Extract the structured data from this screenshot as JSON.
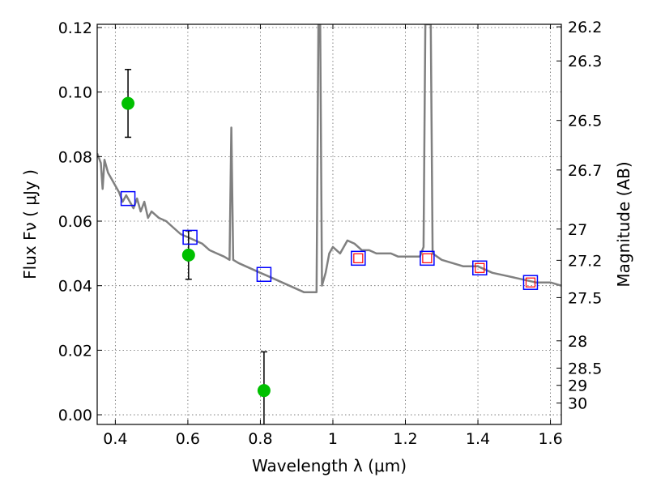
{
  "chart_data": {
    "type": "scatter",
    "xlabel": "Wavelength  λ (μm)",
    "ylabel": "Flux  Fν  ( μJy )",
    "y2label": "Magnitude (AB)",
    "xlim": [
      0.35,
      1.63
    ],
    "ylim": [
      -0.003,
      0.121
    ],
    "xticks": [
      0.4,
      0.6,
      0.8,
      1.0,
      1.2,
      1.4,
      1.6
    ],
    "xtick_labels": [
      "0.4",
      "0.6",
      "0.8",
      "1",
      "1.2",
      "1.4",
      "1.6"
    ],
    "yticks": [
      0.0,
      0.02,
      0.04,
      0.06,
      0.08,
      0.1,
      0.12
    ],
    "ytick_labels": [
      "0.00",
      "0.02",
      "0.04",
      "0.06",
      "0.08",
      "0.10",
      "0.12"
    ],
    "y2ticks": [
      "26.2",
      "26.3",
      "26.5",
      "26.7",
      "27",
      "27.2",
      "27.5",
      "28",
      "28.5",
      "29",
      "30"
    ],
    "grid": true,
    "colors": {
      "model": "#808080",
      "observed": "#00c000",
      "model_band": "#0000ff",
      "model_band_inner": "#ff0000",
      "errorbar": "#000000"
    },
    "series": [
      {
        "type": "line",
        "points": [
          [
            0.35,
            0.081
          ],
          [
            0.36,
            0.078
          ],
          [
            0.365,
            0.07
          ],
          [
            0.37,
            0.079
          ],
          [
            0.38,
            0.075
          ],
          [
            0.39,
            0.073
          ],
          [
            0.4,
            0.071
          ],
          [
            0.41,
            0.069
          ],
          [
            0.42,
            0.066
          ],
          [
            0.43,
            0.068
          ],
          [
            0.44,
            0.066
          ],
          [
            0.45,
            0.064
          ],
          [
            0.46,
            0.067
          ],
          [
            0.47,
            0.063
          ],
          [
            0.48,
            0.066
          ],
          [
            0.49,
            0.061
          ],
          [
            0.5,
            0.063
          ],
          [
            0.52,
            0.061
          ],
          [
            0.54,
            0.06
          ],
          [
            0.56,
            0.058
          ],
          [
            0.58,
            0.056
          ],
          [
            0.6,
            0.055
          ],
          [
            0.62,
            0.054
          ],
          [
            0.64,
            0.053
          ],
          [
            0.66,
            0.051
          ],
          [
            0.68,
            0.05
          ],
          [
            0.7,
            0.049
          ],
          [
            0.715,
            0.048
          ],
          [
            0.72,
            0.089
          ],
          [
            0.725,
            0.048
          ],
          [
            0.74,
            0.047
          ],
          [
            0.76,
            0.046
          ],
          [
            0.78,
            0.045
          ],
          [
            0.8,
            0.044
          ],
          [
            0.82,
            0.043
          ],
          [
            0.84,
            0.042
          ],
          [
            0.86,
            0.041
          ],
          [
            0.88,
            0.04
          ],
          [
            0.9,
            0.039
          ],
          [
            0.92,
            0.038
          ],
          [
            0.94,
            0.038
          ],
          [
            0.955,
            0.038
          ],
          [
            0.96,
            0.121
          ],
          [
            0.965,
            0.121
          ],
          [
            0.97,
            0.04
          ],
          [
            0.98,
            0.044
          ],
          [
            0.99,
            0.05
          ],
          [
            1.0,
            0.052
          ],
          [
            1.02,
            0.05
          ],
          [
            1.04,
            0.054
          ],
          [
            1.06,
            0.053
          ],
          [
            1.08,
            0.051
          ],
          [
            1.1,
            0.051
          ],
          [
            1.12,
            0.05
          ],
          [
            1.14,
            0.05
          ],
          [
            1.16,
            0.05
          ],
          [
            1.18,
            0.049
          ],
          [
            1.2,
            0.049
          ],
          [
            1.22,
            0.049
          ],
          [
            1.24,
            0.049
          ],
          [
            1.25,
            0.052
          ],
          [
            1.255,
            0.121
          ],
          [
            1.27,
            0.121
          ],
          [
            1.275,
            0.05
          ],
          [
            1.3,
            0.048
          ],
          [
            1.33,
            0.047
          ],
          [
            1.36,
            0.046
          ],
          [
            1.4,
            0.046
          ],
          [
            1.44,
            0.044
          ],
          [
            1.48,
            0.043
          ],
          [
            1.52,
            0.042
          ],
          [
            1.56,
            0.041
          ],
          [
            1.6,
            0.041
          ],
          [
            1.63,
            0.04
          ]
        ]
      },
      {
        "type": "scatter",
        "marker": "circle",
        "points": [
          [
            0.435,
            0.0965
          ],
          [
            0.602,
            0.0495
          ],
          [
            0.81,
            0.0075
          ]
        ],
        "yerr": [
          0.0105,
          0.0075,
          0.012
        ]
      },
      {
        "type": "scatter",
        "marker": "square",
        "points": [
          [
            0.435,
            0.067
          ],
          [
            0.606,
            0.055
          ],
          [
            0.81,
            0.0435
          ],
          [
            1.07,
            0.0485
          ],
          [
            1.26,
            0.0485
          ],
          [
            1.405,
            0.0455
          ],
          [
            1.545,
            0.041
          ]
        ]
      },
      {
        "type": "scatter",
        "marker": "square",
        "points": [
          [
            1.07,
            0.0485
          ],
          [
            1.26,
            0.0485
          ],
          [
            1.405,
            0.0455
          ],
          [
            1.545,
            0.041
          ]
        ]
      }
    ]
  }
}
